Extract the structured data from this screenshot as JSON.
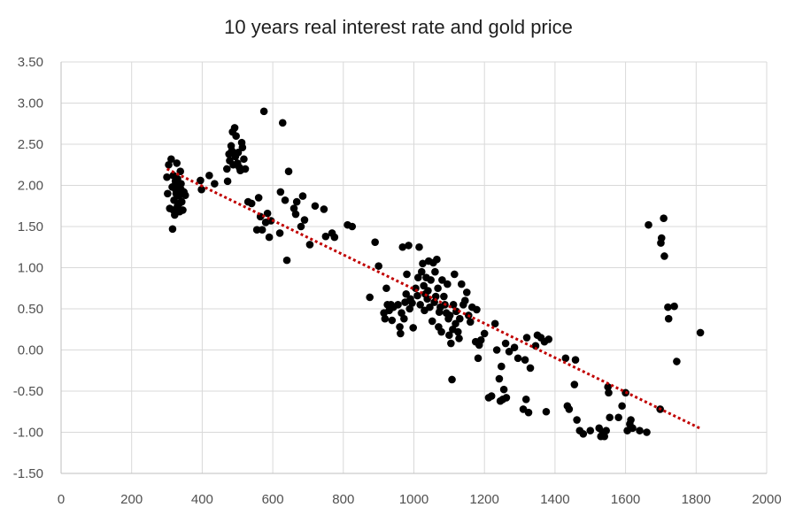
{
  "chart_data": {
    "type": "scatter",
    "title": "10 years real interest rate and gold price",
    "xlabel": "",
    "ylabel": "",
    "xlim": [
      0,
      2000
    ],
    "ylim": [
      -1.5,
      3.5
    ],
    "x_ticks": [
      0,
      200,
      400,
      600,
      800,
      1000,
      1200,
      1400,
      1600,
      1800,
      2000
    ],
    "y_ticks": [
      -1.5,
      -1.0,
      -0.5,
      0.0,
      0.5,
      1.0,
      1.5,
      2.0,
      2.5,
      3.0,
      3.5
    ],
    "x_tick_labels": [
      "0",
      "200",
      "400",
      "600",
      "800",
      "1000",
      "1200",
      "1400",
      "1600",
      "1800",
      "2000"
    ],
    "y_tick_labels": [
      "-1.50",
      "-1.00",
      "-0.50",
      "0.00",
      "0.50",
      "1.00",
      "1.50",
      "2.00",
      "2.50",
      "3.00",
      "3.50"
    ],
    "grid": true,
    "point_color": "#000000",
    "trendline": {
      "type": "linear",
      "color": "#c00000",
      "style": "dotted",
      "points": [
        [
          300,
          2.2
        ],
        [
          1810,
          -0.95
        ]
      ]
    },
    "series": [
      {
        "name": "Data",
        "points": [
          [
            300,
            2.1
          ],
          [
            302,
            1.9
          ],
          [
            305,
            2.25
          ],
          [
            308,
            1.72
          ],
          [
            312,
            2.32
          ],
          [
            315,
            1.98
          ],
          [
            316,
            1.47
          ],
          [
            318,
            2.12
          ],
          [
            320,
            1.82
          ],
          [
            322,
            1.64
          ],
          [
            324,
            2.05
          ],
          [
            326,
            1.9
          ],
          [
            328,
            2.27
          ],
          [
            330,
            1.75
          ],
          [
            332,
            2.0
          ],
          [
            334,
            1.87
          ],
          [
            336,
            1.68
          ],
          [
            338,
            2.17
          ],
          [
            340,
            1.95
          ],
          [
            342,
            1.8
          ],
          [
            345,
            1.7
          ],
          [
            348,
            1.92
          ],
          [
            352,
            1.88
          ],
          [
            335,
            1.78
          ],
          [
            325,
            1.95
          ],
          [
            330,
            2.08
          ],
          [
            340,
            2.02
          ],
          [
            318,
            1.7
          ],
          [
            395,
            2.06
          ],
          [
            398,
            1.95
          ],
          [
            420,
            2.12
          ],
          [
            435,
            2.02
          ],
          [
            470,
            2.2
          ],
          [
            472,
            2.05
          ],
          [
            476,
            2.38
          ],
          [
            478,
            2.3
          ],
          [
            482,
            2.48
          ],
          [
            484,
            2.42
          ],
          [
            486,
            2.65
          ],
          [
            488,
            2.25
          ],
          [
            492,
            2.7
          ],
          [
            494,
            2.35
          ],
          [
            496,
            2.6
          ],
          [
            500,
            2.27
          ],
          [
            502,
            2.4
          ],
          [
            505,
            2.22
          ],
          [
            508,
            2.18
          ],
          [
            512,
            2.52
          ],
          [
            514,
            2.46
          ],
          [
            518,
            2.32
          ],
          [
            522,
            2.2
          ],
          [
            530,
            1.8
          ],
          [
            540,
            1.78
          ],
          [
            555,
            1.46
          ],
          [
            560,
            1.85
          ],
          [
            565,
            1.62
          ],
          [
            570,
            1.46
          ],
          [
            575,
            2.9
          ],
          [
            580,
            1.55
          ],
          [
            585,
            1.66
          ],
          [
            590,
            1.37
          ],
          [
            595,
            1.57
          ],
          [
            620,
            1.42
          ],
          [
            622,
            1.92
          ],
          [
            628,
            2.76
          ],
          [
            635,
            1.82
          ],
          [
            640,
            1.09
          ],
          [
            645,
            2.17
          ],
          [
            660,
            1.72
          ],
          [
            665,
            1.65
          ],
          [
            668,
            1.8
          ],
          [
            680,
            1.5
          ],
          [
            685,
            1.87
          ],
          [
            690,
            1.58
          ],
          [
            705,
            1.28
          ],
          [
            720,
            1.75
          ],
          [
            745,
            1.71
          ],
          [
            750,
            1.38
          ],
          [
            768,
            1.42
          ],
          [
            775,
            1.37
          ],
          [
            812,
            1.52
          ],
          [
            825,
            1.5
          ],
          [
            875,
            0.64
          ],
          [
            890,
            1.31
          ],
          [
            900,
            1.02
          ],
          [
            915,
            0.45
          ],
          [
            918,
            0.38
          ],
          [
            922,
            0.75
          ],
          [
            925,
            0.55
          ],
          [
            930,
            0.48
          ],
          [
            935,
            0.55
          ],
          [
            938,
            0.36
          ],
          [
            942,
            0.52
          ],
          [
            955,
            0.55
          ],
          [
            960,
            0.28
          ],
          [
            962,
            0.2
          ],
          [
            965,
            0.45
          ],
          [
            968,
            1.25
          ],
          [
            972,
            0.38
          ],
          [
            975,
            0.58
          ],
          [
            978,
            0.68
          ],
          [
            980,
            0.92
          ],
          [
            985,
            1.27
          ],
          [
            988,
            0.5
          ],
          [
            990,
            0.62
          ],
          [
            995,
            0.57
          ],
          [
            998,
            0.27
          ],
          [
            1005,
            0.75
          ],
          [
            1010,
            0.66
          ],
          [
            1012,
            0.88
          ],
          [
            1015,
            1.25
          ],
          [
            1018,
            0.55
          ],
          [
            1022,
            0.95
          ],
          [
            1025,
            1.05
          ],
          [
            1028,
            0.78
          ],
          [
            1030,
            0.48
          ],
          [
            1032,
            0.68
          ],
          [
            1035,
            0.88
          ],
          [
            1038,
            0.62
          ],
          [
            1040,
            0.72
          ],
          [
            1042,
            1.08
          ],
          [
            1045,
            0.52
          ],
          [
            1048,
            0.85
          ],
          [
            1052,
            0.35
          ],
          [
            1055,
            1.06
          ],
          [
            1058,
            0.58
          ],
          [
            1060,
            0.95
          ],
          [
            1062,
            0.65
          ],
          [
            1065,
            1.1
          ],
          [
            1068,
            0.75
          ],
          [
            1070,
            0.28
          ],
          [
            1072,
            0.46
          ],
          [
            1075,
            0.52
          ],
          [
            1078,
            0.22
          ],
          [
            1080,
            0.85
          ],
          [
            1085,
            0.65
          ],
          [
            1088,
            0.55
          ],
          [
            1092,
            0.45
          ],
          [
            1095,
            0.8
          ],
          [
            1098,
            0.38
          ],
          [
            1100,
            0.18
          ],
          [
            1102,
            0.42
          ],
          [
            1105,
            0.08
          ],
          [
            1108,
            -0.36
          ],
          [
            1110,
            0.25
          ],
          [
            1112,
            0.55
          ],
          [
            1115,
            0.92
          ],
          [
            1118,
            0.32
          ],
          [
            1120,
            0.47
          ],
          [
            1125,
            0.22
          ],
          [
            1128,
            0.14
          ],
          [
            1130,
            0.38
          ],
          [
            1135,
            0.8
          ],
          [
            1140,
            0.55
          ],
          [
            1145,
            0.6
          ],
          [
            1150,
            0.7
          ],
          [
            1155,
            0.42
          ],
          [
            1160,
            0.34
          ],
          [
            1165,
            0.52
          ],
          [
            1175,
            0.1
          ],
          [
            1178,
            0.49
          ],
          [
            1182,
            -0.1
          ],
          [
            1185,
            0.06
          ],
          [
            1190,
            0.12
          ],
          [
            1200,
            0.2
          ],
          [
            1212,
            -0.58
          ],
          [
            1220,
            -0.56
          ],
          [
            1230,
            0.32
          ],
          [
            1235,
            0.0
          ],
          [
            1242,
            -0.35
          ],
          [
            1245,
            -0.62
          ],
          [
            1248,
            -0.2
          ],
          [
            1252,
            -0.6
          ],
          [
            1255,
            -0.48
          ],
          [
            1260,
            0.08
          ],
          [
            1262,
            -0.58
          ],
          [
            1270,
            -0.02
          ],
          [
            1285,
            0.03
          ],
          [
            1295,
            -0.1
          ],
          [
            1310,
            -0.72
          ],
          [
            1315,
            -0.12
          ],
          [
            1318,
            -0.6
          ],
          [
            1320,
            0.15
          ],
          [
            1325,
            -0.76
          ],
          [
            1330,
            -0.22
          ],
          [
            1345,
            0.05
          ],
          [
            1350,
            0.18
          ],
          [
            1360,
            0.15
          ],
          [
            1370,
            0.1
          ],
          [
            1375,
            -0.75
          ],
          [
            1382,
            0.13
          ],
          [
            1430,
            -0.1
          ],
          [
            1435,
            -0.68
          ],
          [
            1440,
            -0.72
          ],
          [
            1455,
            -0.42
          ],
          [
            1458,
            -0.12
          ],
          [
            1462,
            -0.85
          ],
          [
            1470,
            -0.98
          ],
          [
            1480,
            -1.02
          ],
          [
            1500,
            -0.98
          ],
          [
            1525,
            -0.95
          ],
          [
            1530,
            -1.05
          ],
          [
            1535,
            -1.0
          ],
          [
            1540,
            -1.05
          ],
          [
            1545,
            -0.98
          ],
          [
            1550,
            -0.45
          ],
          [
            1552,
            -0.52
          ],
          [
            1555,
            -0.82
          ],
          [
            1580,
            -0.82
          ],
          [
            1590,
            -0.68
          ],
          [
            1600,
            -0.52
          ],
          [
            1605,
            -0.98
          ],
          [
            1612,
            -0.9
          ],
          [
            1615,
            -0.85
          ],
          [
            1620,
            -0.95
          ],
          [
            1640,
            -0.98
          ],
          [
            1660,
            -1.0
          ],
          [
            1665,
            1.52
          ],
          [
            1698,
            -0.72
          ],
          [
            1700,
            1.3
          ],
          [
            1702,
            1.36
          ],
          [
            1708,
            1.6
          ],
          [
            1710,
            1.14
          ],
          [
            1720,
            0.52
          ],
          [
            1722,
            0.38
          ],
          [
            1738,
            0.53
          ],
          [
            1745,
            -0.14
          ],
          [
            1812,
            0.21
          ]
        ]
      }
    ]
  }
}
